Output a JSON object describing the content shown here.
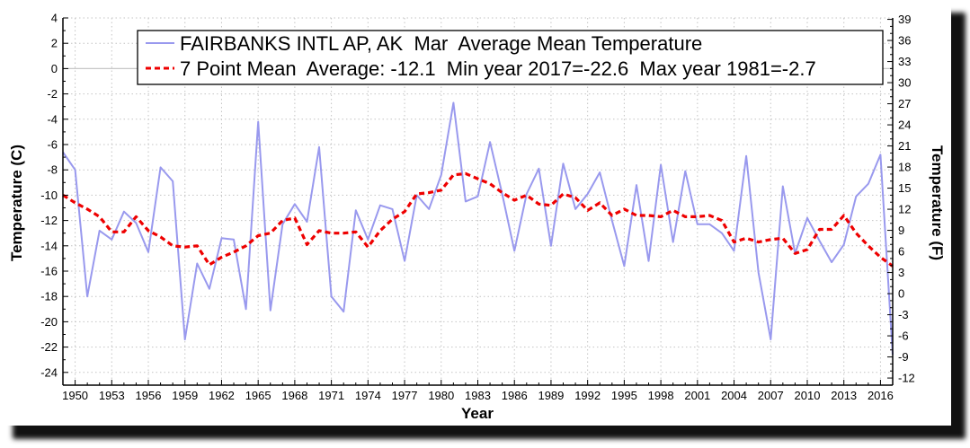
{
  "chart_data": {
    "type": "line",
    "title": "",
    "xlabel": "Year",
    "ylabel_left": "Temperature (C)",
    "ylabel_right": "Temperature (F)",
    "xlim": [
      1949,
      2017
    ],
    "ylim": [
      -25,
      4
    ],
    "ylim_right_f": [
      -13,
      39.2
    ],
    "grid": true,
    "legend_position": "top",
    "x_ticks": [
      1950,
      1953,
      1956,
      1959,
      1962,
      1965,
      1968,
      1971,
      1974,
      1977,
      1980,
      1983,
      1986,
      1989,
      1992,
      1995,
      1998,
      2001,
      2004,
      2007,
      2010,
      2013,
      2016
    ],
    "y_ticks_left": [
      4,
      2,
      0,
      -2,
      -4,
      -6,
      -8,
      -10,
      -12,
      -14,
      -16,
      -18,
      -20,
      -22,
      -24
    ],
    "y_ticks_right": [
      39,
      36,
      33,
      30,
      27,
      24,
      21,
      18,
      15,
      12,
      9,
      6,
      3,
      0,
      -3,
      -6,
      -9,
      -12
    ],
    "x": [
      1949,
      1950,
      1951,
      1952,
      1953,
      1954,
      1955,
      1956,
      1957,
      1958,
      1959,
      1960,
      1961,
      1962,
      1963,
      1964,
      1965,
      1966,
      1967,
      1968,
      1969,
      1970,
      1971,
      1972,
      1973,
      1974,
      1975,
      1976,
      1977,
      1978,
      1979,
      1980,
      1981,
      1982,
      1983,
      1984,
      1985,
      1986,
      1987,
      1988,
      1989,
      1990,
      1991,
      1992,
      1993,
      1994,
      1995,
      1996,
      1997,
      1998,
      1999,
      2000,
      2001,
      2002,
      2003,
      2004,
      2005,
      2006,
      2007,
      2008,
      2009,
      2010,
      2011,
      2012,
      2013,
      2014,
      2015,
      2016,
      2017
    ],
    "series": [
      {
        "name": "FAIRBANKS INTL AP, AK  Mar  Average Mean Temperature",
        "color": "#9999ee",
        "style": "solid",
        "values": [
          -6.6,
          -8.0,
          -18.0,
          -12.8,
          -13.5,
          -11.3,
          -12.2,
          -14.5,
          -7.8,
          -8.9,
          -21.4,
          -15.4,
          -17.4,
          -13.4,
          -13.5,
          -19.0,
          -4.2,
          -19.1,
          -12.3,
          -10.7,
          -12.1,
          -6.2,
          -18.0,
          -19.2,
          -11.2,
          -13.5,
          -10.8,
          -11.1,
          -15.2,
          -10.0,
          -11.1,
          -8.4,
          -2.7,
          -10.5,
          -10.1,
          -5.8,
          -9.9,
          -14.4,
          -9.9,
          -7.9,
          -14.0,
          -7.5,
          -11.1,
          -9.9,
          -8.2,
          -12.0,
          -15.6,
          -9.2,
          -15.2,
          -7.6,
          -13.7,
          -8.1,
          -12.3,
          -12.3,
          -13.0,
          -14.4,
          -6.9,
          -16.1,
          -21.4,
          -9.3,
          -14.6,
          -11.8,
          -13.6,
          -15.3,
          -13.9,
          -10.1,
          -9.1,
          -6.8,
          -22.6
        ]
      },
      {
        "name": "7 Point Mean  Average: -12.1  Min year 2017=-22.6  Max year 1981=-2.7",
        "color": "#ee0000",
        "style": "dashed",
        "values": [
          -10.0,
          -10.6,
          -11.1,
          -11.7,
          -12.9,
          -12.9,
          -11.7,
          -12.8,
          -13.3,
          -14.0,
          -14.1,
          -14.0,
          -15.5,
          -14.9,
          -14.5,
          -14.0,
          -13.2,
          -13.0,
          -12.0,
          -11.8,
          -13.9,
          -12.8,
          -13.0,
          -13.0,
          -12.9,
          -14.1,
          -12.8,
          -11.9,
          -11.3,
          -9.9,
          -9.8,
          -9.6,
          -8.4,
          -8.3,
          -8.7,
          -9.1,
          -9.8,
          -10.4,
          -10.0,
          -10.7,
          -10.8,
          -9.9,
          -10.2,
          -11.2,
          -10.6,
          -11.6,
          -11.1,
          -11.6,
          -11.6,
          -11.7,
          -11.2,
          -11.7,
          -11.7,
          -11.6,
          -12.0,
          -13.7,
          -13.4,
          -13.7,
          -13.5,
          -13.4,
          -14.6,
          -14.3,
          -12.7,
          -12.7,
          -11.6,
          -13.0,
          -14.0,
          -14.9,
          -15.6
        ]
      }
    ],
    "reference_line": {
      "y": 0,
      "color": "#c8c8c8"
    }
  }
}
